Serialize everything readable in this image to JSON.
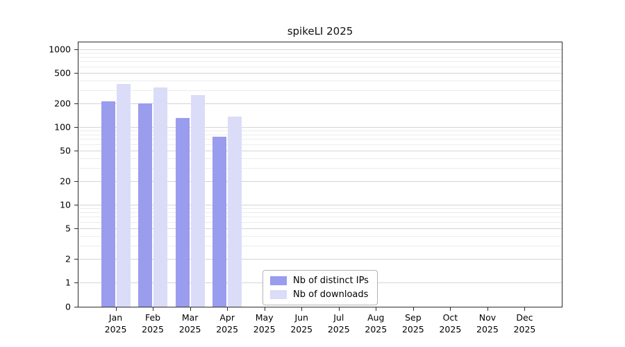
{
  "chart_data": {
    "type": "bar",
    "title": "spikeLI 2025",
    "yscale": "symlog",
    "grid": true,
    "legend_position": "lower center",
    "ylim": [
      0,
      1280
    ],
    "yticks": [
      0,
      1,
      2,
      5,
      10,
      20,
      50,
      100,
      200,
      500,
      1000
    ],
    "categories": [
      {
        "label": "Jan",
        "sub": "2025"
      },
      {
        "label": "Feb",
        "sub": "2025"
      },
      {
        "label": "Mar",
        "sub": "2025"
      },
      {
        "label": "Apr",
        "sub": "2025"
      },
      {
        "label": "May",
        "sub": "2025"
      },
      {
        "label": "Jun",
        "sub": "2025"
      },
      {
        "label": "Jul",
        "sub": "2025"
      },
      {
        "label": "Aug",
        "sub": "2025"
      },
      {
        "label": "Sep",
        "sub": "2025"
      },
      {
        "label": "Oct",
        "sub": "2025"
      },
      {
        "label": "Nov",
        "sub": "2025"
      },
      {
        "label": "Dec",
        "sub": "2025"
      }
    ],
    "series": [
      {
        "name": "Nb of distinct IPs",
        "color": "#9a9cee",
        "values": [
          215,
          200,
          130,
          75,
          0,
          0,
          0,
          0,
          0,
          0,
          0,
          0
        ]
      },
      {
        "name": "Nb of downloads",
        "color": "#dbdcf8",
        "values": [
          360,
          320,
          260,
          135,
          0,
          0,
          0,
          0,
          0,
          0,
          0,
          0
        ]
      }
    ],
    "colors": {
      "grid_major": "#d4d4d4",
      "grid_minor": "#ececec",
      "axis": "#2b2b2b"
    }
  }
}
